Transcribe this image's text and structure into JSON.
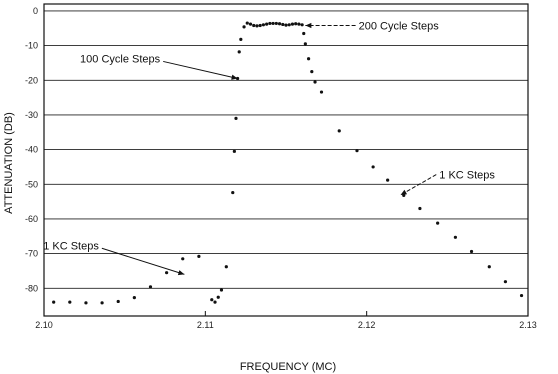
{
  "chart_data": {
    "type": "scatter",
    "title": "",
    "xlabel": "FREQUENCY (MC)",
    "ylabel": "ATTENUATION (DB)",
    "xlim": [
      2.1,
      2.13
    ],
    "ylim": [
      -88,
      2
    ],
    "x_ticks": [
      2.1,
      2.11,
      2.12,
      2.13
    ],
    "x_tick_labels": [
      "2.10",
      "2.11",
      "2.12",
      "2.13"
    ],
    "y_ticks": [
      0,
      -10,
      -20,
      -30,
      -40,
      -50,
      -60,
      -70,
      -80
    ],
    "y_tick_labels": [
      "0",
      "-10",
      "-20",
      "-30",
      "-40",
      "-50",
      "-60",
      "-70",
      "-80"
    ],
    "grid": "horizontal",
    "legend": "none",
    "series": [
      {
        "points": [
          [
            2.1006,
            -84
          ],
          [
            2.1016,
            -84
          ],
          [
            2.1026,
            -84.2
          ],
          [
            2.1036,
            -84.2
          ],
          [
            2.1046,
            -83.8
          ],
          [
            2.1056,
            -82.7
          ],
          [
            2.1066,
            -79.6
          ],
          [
            2.1076,
            -75.5
          ],
          [
            2.1086,
            -71.5
          ],
          [
            2.1096,
            -70.8
          ],
          [
            2.1104,
            -83.3
          ],
          [
            2.1106,
            -84
          ],
          [
            2.1108,
            -82.6
          ],
          [
            2.111,
            -80.5
          ],
          [
            2.1113,
            -73.8
          ],
          [
            2.1117,
            -52.4
          ],
          [
            2.1118,
            -40.5
          ],
          [
            2.1119,
            -31
          ],
          [
            2.112,
            -19.5
          ],
          [
            2.1121,
            -11.8
          ],
          [
            2.1122,
            -8.2
          ],
          [
            2.1124,
            -4.6
          ],
          [
            2.1126,
            -3.5
          ],
          [
            2.1128,
            -3.8
          ],
          [
            2.113,
            -4.2
          ],
          [
            2.1132,
            -4.3
          ],
          [
            2.1134,
            -4.2
          ],
          [
            2.1136,
            -4
          ],
          [
            2.1138,
            -3.8
          ],
          [
            2.114,
            -3.6
          ],
          [
            2.1142,
            -3.6
          ],
          [
            2.1144,
            -3.6
          ],
          [
            2.1146,
            -3.7
          ],
          [
            2.1148,
            -3.9
          ],
          [
            2.115,
            -4.1
          ],
          [
            2.1152,
            -4
          ],
          [
            2.1154,
            -3.8
          ],
          [
            2.1156,
            -3.7
          ],
          [
            2.1158,
            -3.8
          ],
          [
            2.116,
            -4
          ],
          [
            2.1161,
            -6.5
          ],
          [
            2.1162,
            -9.5
          ],
          [
            2.1164,
            -13.8
          ],
          [
            2.1166,
            -17.5
          ],
          [
            2.1168,
            -20.5
          ],
          [
            2.1172,
            -23.4
          ],
          [
            2.1183,
            -34.6
          ],
          [
            2.1194,
            -40.3
          ],
          [
            2.1204,
            -45
          ],
          [
            2.1213,
            -48.8
          ],
          [
            2.1223,
            -53.2
          ],
          [
            2.1233,
            -57
          ],
          [
            2.1244,
            -61.2
          ],
          [
            2.1255,
            -65.3
          ],
          [
            2.1265,
            -69.4
          ],
          [
            2.1276,
            -73.8
          ],
          [
            2.1286,
            -78.1
          ],
          [
            2.1296,
            -82.1
          ]
        ]
      }
    ],
    "annotations": [
      {
        "text": "200 Cycle Steps",
        "target": [
          2.1162,
          -4.2
        ],
        "label_at": [
          2.1195,
          -4.2
        ],
        "style": "dashed"
      },
      {
        "text": "100 Cycle Steps",
        "target": [
          2.112,
          -19.5
        ],
        "label_at": [
          2.1072,
          -13.7
        ],
        "style": "solid"
      },
      {
        "text": "1 KC Steps",
        "target": [
          2.1221,
          -53.1
        ],
        "label_at": [
          2.1245,
          -47.2
        ],
        "style": "dashed"
      },
      {
        "text": "1 KC Steps",
        "target": [
          2.1087,
          -76
        ],
        "label_at": [
          2.1034,
          -67.6
        ],
        "style": "solid"
      }
    ]
  },
  "colors": {
    "background": "#ffffff",
    "axis": "#111111",
    "grid": "#222222",
    "points": "#111111"
  }
}
